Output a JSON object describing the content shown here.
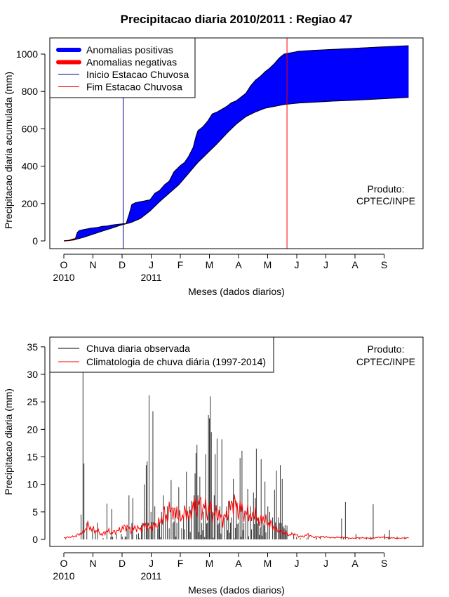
{
  "chart_data": [
    {
      "type": "area",
      "title": "Precipitacao diaria 2010/2011 : Regiao 47",
      "xlabel": "Meses (dados diarios)",
      "ylabel": "Precipitacao diaria acumulada (mm)",
      "ylim": [
        0,
        1050
      ],
      "yticks": [
        "0",
        "200",
        "400",
        "600",
        "800",
        "1000"
      ],
      "month_labels": [
        "O",
        "N",
        "D",
        "J",
        "F",
        "M",
        "A",
        "M",
        "J",
        "J",
        "A",
        "S"
      ],
      "year_labels": [
        {
          "month_index": 0,
          "text": "2010"
        },
        {
          "month_index": 3,
          "text": "2011"
        }
      ],
      "legend": {
        "position": "top-left",
        "entries": [
          {
            "label": "Anomalias positivas",
            "color": "#0000ff",
            "style": "thick"
          },
          {
            "label": "Anomalias negativas",
            "color": "#ff0000",
            "style": "thick"
          },
          {
            "label": "Inicio Estacao Chuvosa",
            "color": "#00008b",
            "style": "thin"
          },
          {
            "label": "Fim Estacao Chuvosa",
            "color": "#ff0000",
            "style": "thin"
          }
        ]
      },
      "annotation": [
        "Produto:",
        "CPTEC/INPE"
      ],
      "season_start_day": 62,
      "season_end_day": 233,
      "observed_cumulative": [
        {
          "day": 0,
          "value": 0
        },
        {
          "day": 5,
          "value": 2
        },
        {
          "day": 10,
          "value": 10
        },
        {
          "day": 12,
          "value": 12
        },
        {
          "day": 14,
          "value": 45
        },
        {
          "day": 16,
          "value": 55
        },
        {
          "day": 18,
          "value": 58
        },
        {
          "day": 22,
          "value": 62
        },
        {
          "day": 28,
          "value": 68
        },
        {
          "day": 35,
          "value": 72
        },
        {
          "day": 40,
          "value": 78
        },
        {
          "day": 45,
          "value": 80
        },
        {
          "day": 50,
          "value": 85
        },
        {
          "day": 55,
          "value": 88
        },
        {
          "day": 62,
          "value": 92
        },
        {
          "day": 65,
          "value": 93
        },
        {
          "day": 68,
          "value": 140
        },
        {
          "day": 71,
          "value": 195
        },
        {
          "day": 75,
          "value": 205
        },
        {
          "day": 80,
          "value": 210
        },
        {
          "day": 85,
          "value": 215
        },
        {
          "day": 90,
          "value": 220
        },
        {
          "day": 95,
          "value": 255
        },
        {
          "day": 100,
          "value": 270
        },
        {
          "day": 105,
          "value": 300
        },
        {
          "day": 110,
          "value": 320
        },
        {
          "day": 115,
          "value": 370
        },
        {
          "day": 118,
          "value": 385
        },
        {
          "day": 122,
          "value": 405
        },
        {
          "day": 126,
          "value": 420
        },
        {
          "day": 130,
          "value": 450
        },
        {
          "day": 135,
          "value": 500
        },
        {
          "day": 138,
          "value": 560
        },
        {
          "day": 140,
          "value": 590
        },
        {
          "day": 145,
          "value": 610
        },
        {
          "day": 150,
          "value": 640
        },
        {
          "day": 155,
          "value": 680
        },
        {
          "day": 160,
          "value": 690
        },
        {
          "day": 165,
          "value": 705
        },
        {
          "day": 170,
          "value": 720
        },
        {
          "day": 175,
          "value": 740
        },
        {
          "day": 180,
          "value": 750
        },
        {
          "day": 185,
          "value": 770
        },
        {
          "day": 190,
          "value": 790
        },
        {
          "day": 195,
          "value": 830
        },
        {
          "day": 200,
          "value": 860
        },
        {
          "day": 205,
          "value": 880
        },
        {
          "day": 210,
          "value": 905
        },
        {
          "day": 215,
          "value": 925
        },
        {
          "day": 220,
          "value": 950
        },
        {
          "day": 225,
          "value": 980
        },
        {
          "day": 230,
          "value": 1000
        },
        {
          "day": 235,
          "value": 1005
        },
        {
          "day": 245,
          "value": 1015
        },
        {
          "day": 260,
          "value": 1020
        },
        {
          "day": 280,
          "value": 1025
        },
        {
          "day": 300,
          "value": 1030
        },
        {
          "day": 330,
          "value": 1038
        },
        {
          "day": 360,
          "value": 1045
        }
      ],
      "climatology_cumulative": [
        {
          "day": 0,
          "value": 0
        },
        {
          "day": 10,
          "value": 5
        },
        {
          "day": 20,
          "value": 18
        },
        {
          "day": 30,
          "value": 35
        },
        {
          "day": 40,
          "value": 52
        },
        {
          "day": 50,
          "value": 68
        },
        {
          "day": 60,
          "value": 85
        },
        {
          "day": 70,
          "value": 98
        },
        {
          "day": 80,
          "value": 120
        },
        {
          "day": 90,
          "value": 160
        },
        {
          "day": 100,
          "value": 210
        },
        {
          "day": 110,
          "value": 255
        },
        {
          "day": 120,
          "value": 300
        },
        {
          "day": 130,
          "value": 360
        },
        {
          "day": 140,
          "value": 420
        },
        {
          "day": 150,
          "value": 470
        },
        {
          "day": 160,
          "value": 520
        },
        {
          "day": 170,
          "value": 575
        },
        {
          "day": 180,
          "value": 625
        },
        {
          "day": 190,
          "value": 665
        },
        {
          "day": 200,
          "value": 690
        },
        {
          "day": 210,
          "value": 710
        },
        {
          "day": 220,
          "value": 720
        },
        {
          "day": 230,
          "value": 730
        },
        {
          "day": 245,
          "value": 738
        },
        {
          "day": 260,
          "value": 742
        },
        {
          "day": 280,
          "value": 748
        },
        {
          "day": 300,
          "value": 752
        },
        {
          "day": 330,
          "value": 760
        },
        {
          "day": 360,
          "value": 768
        }
      ]
    },
    {
      "type": "bar",
      "xlabel": "Meses (dados diarios)",
      "ylabel": "Precipitacao diaria (mm)",
      "ylim": [
        0,
        35
      ],
      "yticks": [
        "0",
        "5",
        "10",
        "15",
        "20",
        "25",
        "30",
        "35"
      ],
      "month_labels": [
        "O",
        "N",
        "D",
        "J",
        "F",
        "M",
        "A",
        "M",
        "J",
        "J",
        "A",
        "S"
      ],
      "year_labels": [
        {
          "month_index": 0,
          "text": "2010"
        },
        {
          "month_index": 3,
          "text": "2011"
        }
      ],
      "legend": {
        "position": "top-left",
        "entries": [
          {
            "label": "Chuva diaria observada",
            "color": "#000000"
          },
          {
            "label": "Climatologia de chuva diária (1997-2014)",
            "color": "#ff0000"
          }
        ]
      },
      "annotation": [
        "Produto:",
        "CPTEC/INPE"
      ],
      "observed_daily_peaks": [
        {
          "day": 18,
          "value": 4.5
        },
        {
          "day": 20,
          "value": 30.5
        },
        {
          "day": 21,
          "value": 13.8
        },
        {
          "day": 24,
          "value": 3
        },
        {
          "day": 30,
          "value": 2
        },
        {
          "day": 33,
          "value": 1.5
        },
        {
          "day": 35,
          "value": 3
        },
        {
          "day": 45,
          "value": 6.5
        },
        {
          "day": 50,
          "value": 5.5
        },
        {
          "day": 55,
          "value": 1
        },
        {
          "day": 60,
          "value": 1
        },
        {
          "day": 66,
          "value": 2
        },
        {
          "day": 68,
          "value": 8
        },
        {
          "day": 72,
          "value": 7.5
        },
        {
          "day": 82,
          "value": 3
        },
        {
          "day": 84,
          "value": 10
        },
        {
          "day": 86,
          "value": 13.5
        },
        {
          "day": 87,
          "value": 14.2
        },
        {
          "day": 88,
          "value": 2
        },
        {
          "day": 89,
          "value": 26.2
        },
        {
          "day": 91,
          "value": 5
        },
        {
          "day": 93,
          "value": 23.3
        },
        {
          "day": 95,
          "value": 6
        },
        {
          "day": 98,
          "value": 2
        },
        {
          "day": 100,
          "value": 3
        },
        {
          "day": 102,
          "value": 5
        },
        {
          "day": 104,
          "value": 8
        },
        {
          "day": 106,
          "value": 4
        },
        {
          "day": 108,
          "value": 6
        },
        {
          "day": 110,
          "value": 2
        },
        {
          "day": 112,
          "value": 10.8
        },
        {
          "day": 114,
          "value": 3
        },
        {
          "day": 116,
          "value": 5.5
        },
        {
          "day": 118,
          "value": 3
        },
        {
          "day": 120,
          "value": 9.5
        },
        {
          "day": 123,
          "value": 2
        },
        {
          "day": 125,
          "value": 4
        },
        {
          "day": 128,
          "value": 12.3
        },
        {
          "day": 130,
          "value": 4
        },
        {
          "day": 131,
          "value": 6
        },
        {
          "day": 133,
          "value": 7
        },
        {
          "day": 136,
          "value": 8
        },
        {
          "day": 137,
          "value": 12
        },
        {
          "day": 138,
          "value": 15.7
        },
        {
          "day": 139,
          "value": 17.2
        },
        {
          "day": 140,
          "value": 8
        },
        {
          "day": 142,
          "value": 11.4
        },
        {
          "day": 144,
          "value": 3
        },
        {
          "day": 146,
          "value": 5
        },
        {
          "day": 148,
          "value": 15.5
        },
        {
          "day": 150,
          "value": 3
        },
        {
          "day": 151,
          "value": 22.6
        },
        {
          "day": 152,
          "value": 22
        },
        {
          "day": 153,
          "value": 26
        },
        {
          "day": 154,
          "value": 19.5
        },
        {
          "day": 155,
          "value": 5
        },
        {
          "day": 157,
          "value": 8
        },
        {
          "day": 158,
          "value": 15.5
        },
        {
          "day": 160,
          "value": 18.3
        },
        {
          "day": 162,
          "value": 3
        },
        {
          "day": 163,
          "value": 6
        },
        {
          "day": 165,
          "value": 18.2
        },
        {
          "day": 168,
          "value": 4
        },
        {
          "day": 170,
          "value": 6
        },
        {
          "day": 172,
          "value": 7
        },
        {
          "day": 175,
          "value": 4
        },
        {
          "day": 177,
          "value": 11
        },
        {
          "day": 180,
          "value": 7
        },
        {
          "day": 182,
          "value": 3
        },
        {
          "day": 184,
          "value": 14.8
        },
        {
          "day": 186,
          "value": 16.1
        },
        {
          "day": 188,
          "value": 3
        },
        {
          "day": 190,
          "value": 5
        },
        {
          "day": 192,
          "value": 9.2
        },
        {
          "day": 195,
          "value": 6
        },
        {
          "day": 198,
          "value": 8.5
        },
        {
          "day": 200,
          "value": 7.5
        },
        {
          "day": 201,
          "value": 16.5
        },
        {
          "day": 203,
          "value": 4
        },
        {
          "day": 206,
          "value": 14.6
        },
        {
          "day": 208,
          "value": 3
        },
        {
          "day": 210,
          "value": 10.5
        },
        {
          "day": 213,
          "value": 6
        },
        {
          "day": 215,
          "value": 5
        },
        {
          "day": 218,
          "value": 4
        },
        {
          "day": 220,
          "value": 9
        },
        {
          "day": 222,
          "value": 12.5
        },
        {
          "day": 224,
          "value": 4
        },
        {
          "day": 226,
          "value": 13.5
        },
        {
          "day": 228,
          "value": 11
        },
        {
          "day": 230,
          "value": 2
        },
        {
          "day": 233,
          "value": 2.5
        },
        {
          "day": 240,
          "value": 1
        },
        {
          "day": 255,
          "value": 0.5
        },
        {
          "day": 268,
          "value": 0.5
        },
        {
          "day": 290,
          "value": 3.8
        },
        {
          "day": 294,
          "value": 6.8
        },
        {
          "day": 305,
          "value": 1
        },
        {
          "day": 320,
          "value": 0.5
        },
        {
          "day": 323,
          "value": 6.4
        },
        {
          "day": 335,
          "value": 1
        },
        {
          "day": 340,
          "value": 1.7
        },
        {
          "day": 348,
          "value": 0.5
        }
      ],
      "climatology_daily": [
        {
          "day": 0,
          "value": 0.3
        },
        {
          "day": 10,
          "value": 0.5
        },
        {
          "day": 20,
          "value": 1.2
        },
        {
          "day": 25,
          "value": 2.5
        },
        {
          "day": 30,
          "value": 1.8
        },
        {
          "day": 35,
          "value": 1.5
        },
        {
          "day": 40,
          "value": 0.8
        },
        {
          "day": 45,
          "value": 1.6
        },
        {
          "day": 50,
          "value": 1.2
        },
        {
          "day": 55,
          "value": 1.5
        },
        {
          "day": 60,
          "value": 1.8
        },
        {
          "day": 65,
          "value": 2.4
        },
        {
          "day": 70,
          "value": 1.6
        },
        {
          "day": 75,
          "value": 2.2
        },
        {
          "day": 80,
          "value": 1.8
        },
        {
          "day": 85,
          "value": 2.6
        },
        {
          "day": 90,
          "value": 2.1
        },
        {
          "day": 95,
          "value": 2.5
        },
        {
          "day": 100,
          "value": 3.0
        },
        {
          "day": 105,
          "value": 4.8
        },
        {
          "day": 108,
          "value": 3.8
        },
        {
          "day": 112,
          "value": 6.0
        },
        {
          "day": 115,
          "value": 4.5
        },
        {
          "day": 118,
          "value": 5.5
        },
        {
          "day": 120,
          "value": 3.7
        },
        {
          "day": 125,
          "value": 4.5
        },
        {
          "day": 128,
          "value": 5.0
        },
        {
          "day": 132,
          "value": 4.0
        },
        {
          "day": 135,
          "value": 6.5
        },
        {
          "day": 138,
          "value": 5.2
        },
        {
          "day": 141,
          "value": 7.1
        },
        {
          "day": 144,
          "value": 5.4
        },
        {
          "day": 147,
          "value": 6.2
        },
        {
          "day": 150,
          "value": 4.8
        },
        {
          "day": 153,
          "value": 6.0
        },
        {
          "day": 156,
          "value": 4.3
        },
        {
          "day": 160,
          "value": 5.0
        },
        {
          "day": 163,
          "value": 4.0
        },
        {
          "day": 166,
          "value": 3.6
        },
        {
          "day": 170,
          "value": 4.5
        },
        {
          "day": 174,
          "value": 5.8
        },
        {
          "day": 177,
          "value": 7.0
        },
        {
          "day": 180,
          "value": 6.0
        },
        {
          "day": 183,
          "value": 5.0
        },
        {
          "day": 186,
          "value": 6.0
        },
        {
          "day": 189,
          "value": 4.0
        },
        {
          "day": 192,
          "value": 5.6
        },
        {
          "day": 195,
          "value": 3.5
        },
        {
          "day": 198,
          "value": 5.0
        },
        {
          "day": 201,
          "value": 4.2
        },
        {
          "day": 205,
          "value": 3.2
        },
        {
          "day": 208,
          "value": 4.0
        },
        {
          "day": 212,
          "value": 3.0
        },
        {
          "day": 216,
          "value": 2.8
        },
        {
          "day": 220,
          "value": 2.0
        },
        {
          "day": 225,
          "value": 1.5
        },
        {
          "day": 230,
          "value": 1.2
        },
        {
          "day": 235,
          "value": 0.8
        },
        {
          "day": 240,
          "value": 1.0
        },
        {
          "day": 245,
          "value": 0.6
        },
        {
          "day": 250,
          "value": 0.5
        },
        {
          "day": 255,
          "value": 0.9
        },
        {
          "day": 260,
          "value": 0.4
        },
        {
          "day": 270,
          "value": 0.5
        },
        {
          "day": 280,
          "value": 0.3
        },
        {
          "day": 290,
          "value": 0.4
        },
        {
          "day": 300,
          "value": 0.2
        },
        {
          "day": 310,
          "value": 0.3
        },
        {
          "day": 320,
          "value": 0.2
        },
        {
          "day": 330,
          "value": 0.4
        },
        {
          "day": 340,
          "value": 0.3
        },
        {
          "day": 350,
          "value": 0.2
        },
        {
          "day": 360,
          "value": 0.3
        }
      ]
    }
  ]
}
